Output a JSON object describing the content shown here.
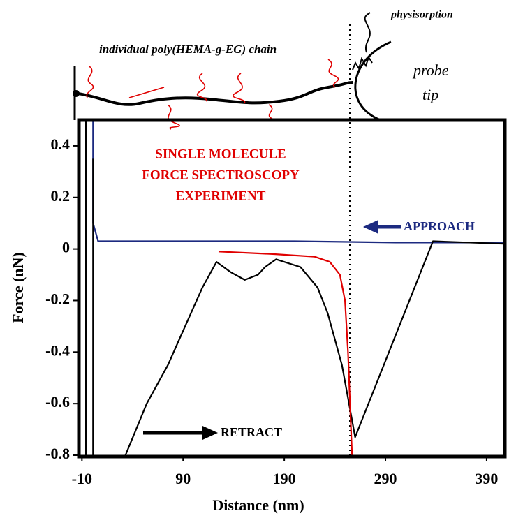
{
  "chart_data": {
    "type": "line",
    "xlabel": "Distance (nm)",
    "ylabel": "Force (nN)",
    "xlim": [
      -13,
      408
    ],
    "ylim": [
      -0.8,
      0.5
    ],
    "xticks": [
      -10,
      90,
      190,
      290,
      390
    ],
    "yticks": [
      -0.8,
      -0.6,
      -0.4,
      -0.2,
      0,
      0.2,
      0.4
    ],
    "series": [
      {
        "color": "#1c2a80",
        "x": [
          1,
          1,
          6,
          100,
          200,
          300,
          408
        ],
        "values": [
          0.5,
          0.1,
          0.03,
          0.03,
          0.03,
          0.025,
          0.025
        ]
      },
      {
        "color": "#000000",
        "x": [
          33,
          54,
          75,
          92,
          109,
          123,
          137,
          151,
          164,
          171,
          182,
          206,
          223,
          233,
          247,
          254,
          260,
          337,
          407
        ],
        "values": [
          -0.8,
          -0.6,
          -0.45,
          -0.3,
          -0.15,
          -0.05,
          -0.09,
          -0.12,
          -0.1,
          -0.07,
          -0.04,
          -0.07,
          -0.15,
          -0.25,
          -0.45,
          -0.6,
          -0.73,
          0.03,
          0.02
        ]
      },
      {
        "color": "#e00000",
        "x": [
          125,
          180,
          220,
          235,
          245,
          250,
          253,
          255,
          257
        ],
        "values": [
          -0.01,
          -0.02,
          -0.03,
          -0.05,
          -0.1,
          -0.2,
          -0.4,
          -0.6,
          -0.8
        ]
      },
      {
        "color": "#000000",
        "x": [
          -6,
          -6
        ],
        "values": [
          0.5,
          -0.8
        ]
      },
      {
        "color": "#000000",
        "x": [
          1,
          1
        ],
        "values": [
          0.35,
          -0.8
        ]
      }
    ],
    "experiment_label": [
      "SINGLE MOLECULE",
      "FORCE SPECTROSCOPY",
      "EXPERIMENT"
    ],
    "approach_label": "APPROACH",
    "retract_label": "RETRACT",
    "chain_label": "individual poly(HEMA-g-EG) chain",
    "physisorption_label": "physisorption",
    "probe_label": [
      "probe",
      "tip"
    ]
  }
}
